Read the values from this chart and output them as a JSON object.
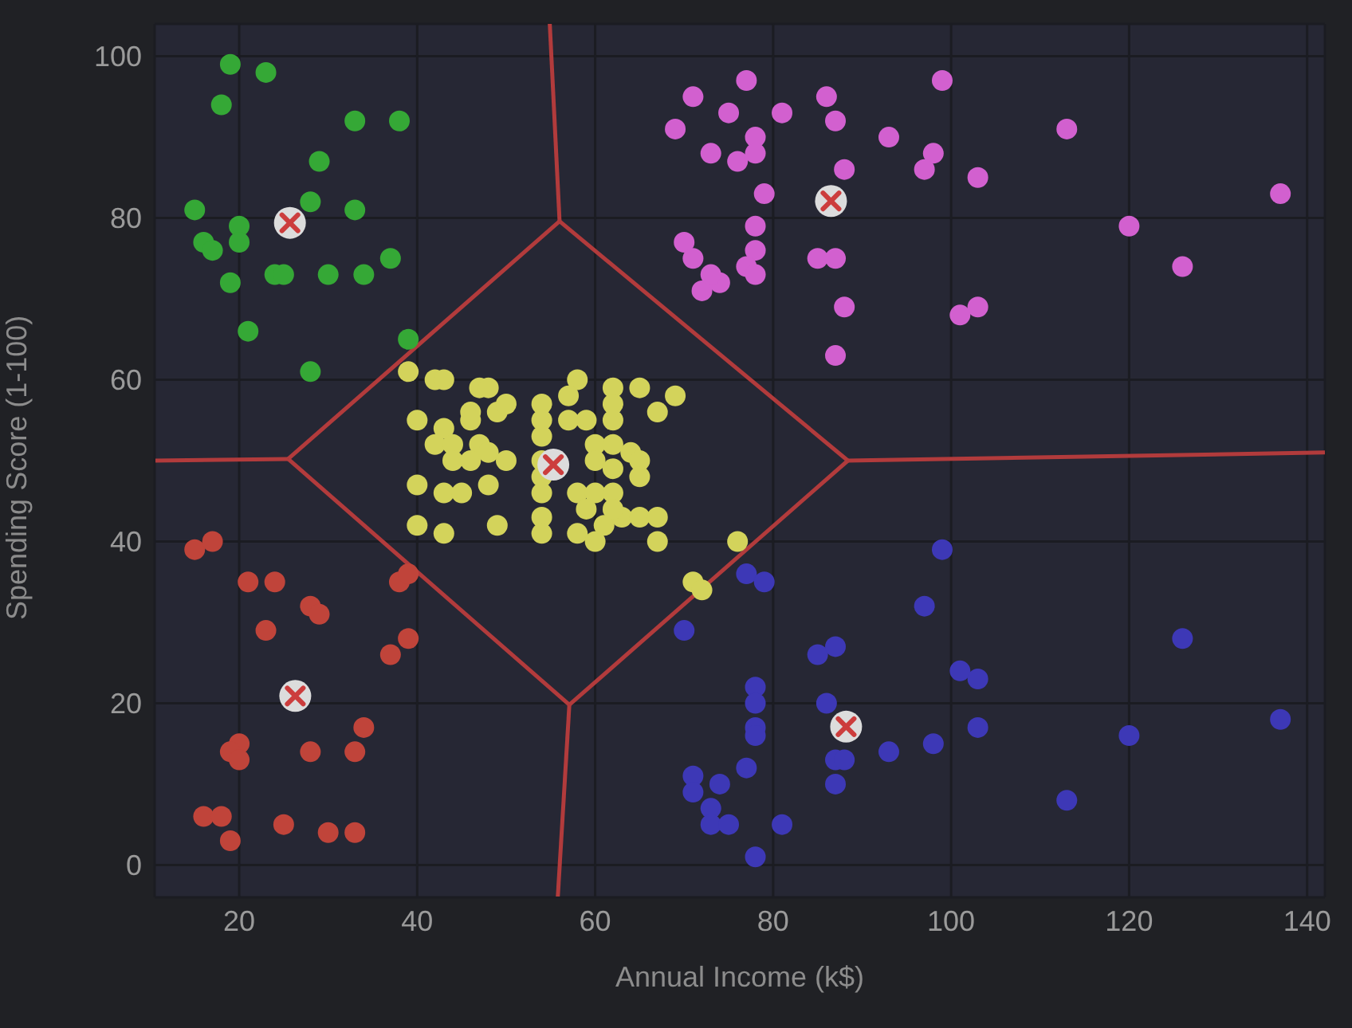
{
  "chart_data": {
    "type": "scatter",
    "xlabel": "Annual Income (k$)",
    "ylabel": "Spending Score (1-100)",
    "xlim": [
      10.5,
      142
    ],
    "ylim": [
      -4,
      104
    ],
    "xticks": [
      20,
      40,
      60,
      80,
      100,
      120,
      140
    ],
    "yticks": [
      0,
      20,
      40,
      60,
      80,
      100
    ],
    "grid": true,
    "marker": "circle",
    "series": [
      {
        "type": "line",
        "color": "#b23b3c",
        "marker": "none",
        "line_style": "solid",
        "x": [
          25.5,
          56.0
        ],
        "values": [
          50.2,
          79.6
        ]
      },
      {
        "type": "line",
        "color": "#b23b3c",
        "marker": "none",
        "line_style": "solid",
        "x": [
          56.0,
          88.4
        ],
        "values": [
          79.6,
          50.0
        ]
      },
      {
        "type": "line",
        "color": "#b23b3c",
        "marker": "none",
        "line_style": "solid",
        "x": [
          25.5,
          57.1
        ],
        "values": [
          50.2,
          19.8
        ]
      },
      {
        "type": "line",
        "color": "#b23b3c",
        "marker": "none",
        "line_style": "solid",
        "x": [
          57.1,
          88.4
        ],
        "values": [
          19.8,
          50.0
        ]
      },
      {
        "type": "line",
        "color": "#b23b3c",
        "marker": "none",
        "line_style": "solid",
        "x": [
          54.9,
          56.0
        ],
        "values": [
          104,
          79.6
        ]
      },
      {
        "type": "line",
        "color": "#b23b3c",
        "marker": "none",
        "line_style": "solid",
        "x": [
          10.5,
          25.5
        ],
        "values": [
          50,
          50.2
        ]
      },
      {
        "type": "line",
        "color": "#b23b3c",
        "marker": "none",
        "line_style": "solid",
        "x": [
          55.8,
          57.1
        ],
        "values": [
          -4,
          19.8
        ]
      },
      {
        "type": "line",
        "color": "#b23b3c",
        "marker": "none",
        "line_style": "solid",
        "x": [
          88.4,
          142
        ],
        "values": [
          50.0,
          51
        ]
      },
      {
        "color": "#35a836",
        "x": [
          19,
          23,
          18,
          33,
          38,
          29,
          28,
          15,
          33,
          20,
          16,
          17,
          20,
          37,
          19,
          24,
          25,
          30,
          34,
          21,
          39,
          28
        ],
        "values": [
          99,
          98,
          94,
          92,
          92,
          87,
          82,
          81,
          81,
          79,
          77,
          76,
          77,
          75,
          72,
          73,
          73,
          73,
          73,
          66,
          65,
          61
        ]
      },
      {
        "color": "#c0443a",
        "x": [
          15,
          17,
          21,
          24,
          28,
          29,
          23,
          38,
          39,
          39,
          37,
          20,
          19,
          20,
          28,
          33,
          34,
          16,
          18,
          19,
          25,
          30,
          33
        ],
        "values": [
          39,
          40,
          35,
          35,
          32,
          31,
          29,
          35,
          36,
          28,
          26,
          15,
          14,
          13,
          14,
          14,
          17,
          6,
          6,
          3,
          5,
          4,
          4
        ]
      },
      {
        "color": "#d260cf",
        "x": [
          77,
          71,
          75,
          69,
          81,
          86,
          87,
          78,
          78,
          73,
          76,
          93,
          99,
          98,
          97,
          103,
          113,
          88,
          79,
          137,
          120,
          126,
          70,
          71,
          72,
          74,
          73,
          78,
          78,
          77,
          78,
          85,
          87,
          88,
          87,
          101,
          103
        ],
        "values": [
          97,
          95,
          93,
          91,
          93,
          95,
          92,
          90,
          88,
          88,
          87,
          90,
          97,
          88,
          86,
          85,
          91,
          86,
          83,
          83,
          79,
          74,
          77,
          75,
          71,
          72,
          73,
          79,
          76,
          74,
          73,
          75,
          75,
          69,
          63,
          68,
          69
        ]
      },
      {
        "color": "#3d38b6",
        "x": [
          99,
          97,
          126,
          77,
          79,
          70,
          85,
          87,
          101,
          103,
          78,
          78,
          86,
          78,
          78,
          93,
          98,
          103,
          120,
          137,
          87,
          88,
          87,
          77,
          71,
          71,
          74,
          73,
          73,
          75,
          81,
          78,
          113
        ],
        "values": [
          39,
          32,
          28,
          36,
          35,
          29,
          26,
          27,
          24,
          23,
          22,
          20,
          20,
          17,
          16,
          14,
          15,
          17,
          16,
          18,
          13,
          13,
          10,
          12,
          11,
          9,
          10,
          7,
          5,
          5,
          5,
          1,
          8
        ]
      },
      {
        "color": "#d3d35b",
        "x": [
          39,
          42,
          43,
          47,
          48,
          58,
          57,
          62,
          65,
          69,
          67,
          40,
          43,
          46,
          46,
          49,
          50,
          54,
          54,
          57,
          59,
          62,
          62,
          42,
          44,
          47,
          48,
          44,
          46,
          50,
          54,
          54,
          54,
          60,
          62,
          64,
          65,
          60,
          62,
          40,
          43,
          45,
          48,
          54,
          54,
          54,
          58,
          60,
          62,
          65,
          40,
          43,
          49,
          58,
          60,
          61,
          63,
          65,
          67,
          67,
          59,
          62,
          76,
          71,
          72
        ],
        "values": [
          61,
          60,
          60,
          59,
          59,
          60,
          58,
          59,
          59,
          58,
          56,
          55,
          54,
          56,
          55,
          56,
          57,
          57,
          55,
          55,
          55,
          57,
          55,
          52,
          52,
          52,
          51,
          50,
          50,
          50,
          53,
          50,
          48,
          52,
          52,
          51,
          50,
          50,
          49,
          47,
          46,
          46,
          47,
          46,
          43,
          41,
          46,
          46,
          46,
          48,
          42,
          41,
          42,
          41,
          40,
          42,
          43,
          43,
          43,
          40,
          44,
          44,
          40,
          35,
          34
        ]
      },
      {
        "color": "#cc3d3d",
        "marker": "cross",
        "x": [
          26.3,
          25.7,
          55.3,
          86.5,
          88.2
        ],
        "values": [
          20.9,
          79.4,
          49.5,
          82.1,
          17.1
        ]
      }
    ]
  }
}
